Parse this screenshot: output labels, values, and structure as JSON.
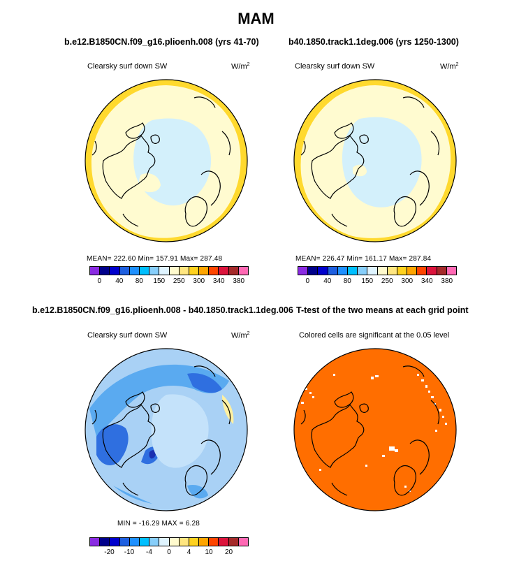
{
  "title": "MAM",
  "panels": [
    {
      "id": "model-a",
      "title": "b.e12.B1850CN.f09_g16.plioenh.008 (yrs 41-70)",
      "variable": "Clearsky surf down SW",
      "units_base": "W/m",
      "units_exp": "2",
      "stats": "MEAN= 222.60   Min= 157.91   Max= 287.48",
      "colorbar": {
        "colors": [
          "#8a2be2",
          "#00008b",
          "#0000cd",
          "#1e5fe0",
          "#1e90ff",
          "#00bfff",
          "#87cefa",
          "#dff4ff",
          "#fffacd",
          "#ffe680",
          "#ffd21f",
          "#ffa500",
          "#ff4500",
          "#dc143c",
          "#a52a2a",
          "#ff69b4"
        ],
        "ticks": [
          "0",
          "40",
          "80",
          "150",
          "250",
          "300",
          "340",
          "380"
        ]
      }
    },
    {
      "id": "model-b",
      "title": "b40.1850.track1.1deg.006 (yrs 1250-1300)",
      "variable": "Clearsky surf down SW",
      "units_base": "W/m",
      "units_exp": "2",
      "stats": "MEAN= 226.47   Min= 161.17   Max= 287.84",
      "colorbar": {
        "colors": [
          "#8a2be2",
          "#00008b",
          "#0000cd",
          "#1e5fe0",
          "#1e90ff",
          "#00bfff",
          "#87cefa",
          "#dff4ff",
          "#fffacd",
          "#ffe680",
          "#ffd21f",
          "#ffa500",
          "#ff4500",
          "#dc143c",
          "#a52a2a",
          "#ff69b4"
        ],
        "ticks": [
          "0",
          "40",
          "80",
          "150",
          "250",
          "300",
          "340",
          "380"
        ]
      }
    },
    {
      "id": "difference",
      "title": "b.e12.B1850CN.f09_g16.plioenh.008 - b40.1850.track1.1deg.006",
      "variable": "Clearsky surf down SW",
      "units_base": "W/m",
      "units_exp": "2",
      "stats": "MIN = -16.29  MAX =    6.28",
      "colorbar": {
        "colors": [
          "#8a2be2",
          "#00008b",
          "#0000cd",
          "#1e5fe0",
          "#1e90ff",
          "#00bfff",
          "#87cefa",
          "#dff4ff",
          "#fffacd",
          "#ffe680",
          "#ffd21f",
          "#ffa500",
          "#ff4500",
          "#dc143c",
          "#a52a2a",
          "#ff69b4"
        ],
        "ticks": [
          "-20",
          "-10",
          "-4",
          "0",
          "4",
          "10",
          "20"
        ]
      }
    },
    {
      "id": "ttest",
      "title": "T-test of the two means at each grid point",
      "variable": "Colored cells are significant at the 0.05 level",
      "fill": "#ff6e00"
    }
  ],
  "map_fills": {
    "yellow_edge": "#ffd92e",
    "light_yellow": "#fffbd0",
    "light_blue": "#d3f0fb",
    "diff_base": "#a9d1f5",
    "diff_mid": "#5aaaf0",
    "diff_dark": "#2f6fe0",
    "diff_pos": "#fff0a0"
  }
}
